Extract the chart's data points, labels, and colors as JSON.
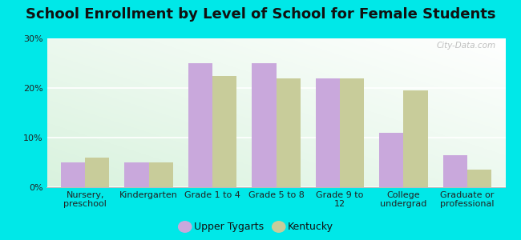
{
  "title": "School Enrollment by Level of School for Female Students",
  "categories": [
    "Nursery,\npreschool",
    "Kindergarten",
    "Grade 1 to 4",
    "Grade 5 to 8",
    "Grade 9 to\n12",
    "College\nundergrad",
    "Graduate or\nprofessional"
  ],
  "upper_tygarts": [
    5.0,
    5.0,
    25.0,
    25.0,
    22.0,
    11.0,
    6.5
  ],
  "kentucky": [
    6.0,
    5.0,
    22.5,
    22.0,
    22.0,
    19.5,
    3.5
  ],
  "color_upper": "#c9a8dc",
  "color_kentucky": "#c8cc9a",
  "ylim": [
    0,
    30
  ],
  "yticks": [
    0,
    10,
    20,
    30
  ],
  "ytick_labels": [
    "0%",
    "10%",
    "20%",
    "30%"
  ],
  "legend_upper": "Upper Tygarts",
  "legend_kentucky": "Kentucky",
  "background_color": "#00e8e8",
  "bar_width": 0.38,
  "watermark": "City-Data.com",
  "gradient_colors": [
    "#d4edda",
    "#edf7ee",
    "#f5fbf5",
    "#ffffff"
  ],
  "title_fontsize": 13,
  "tick_fontsize": 8
}
